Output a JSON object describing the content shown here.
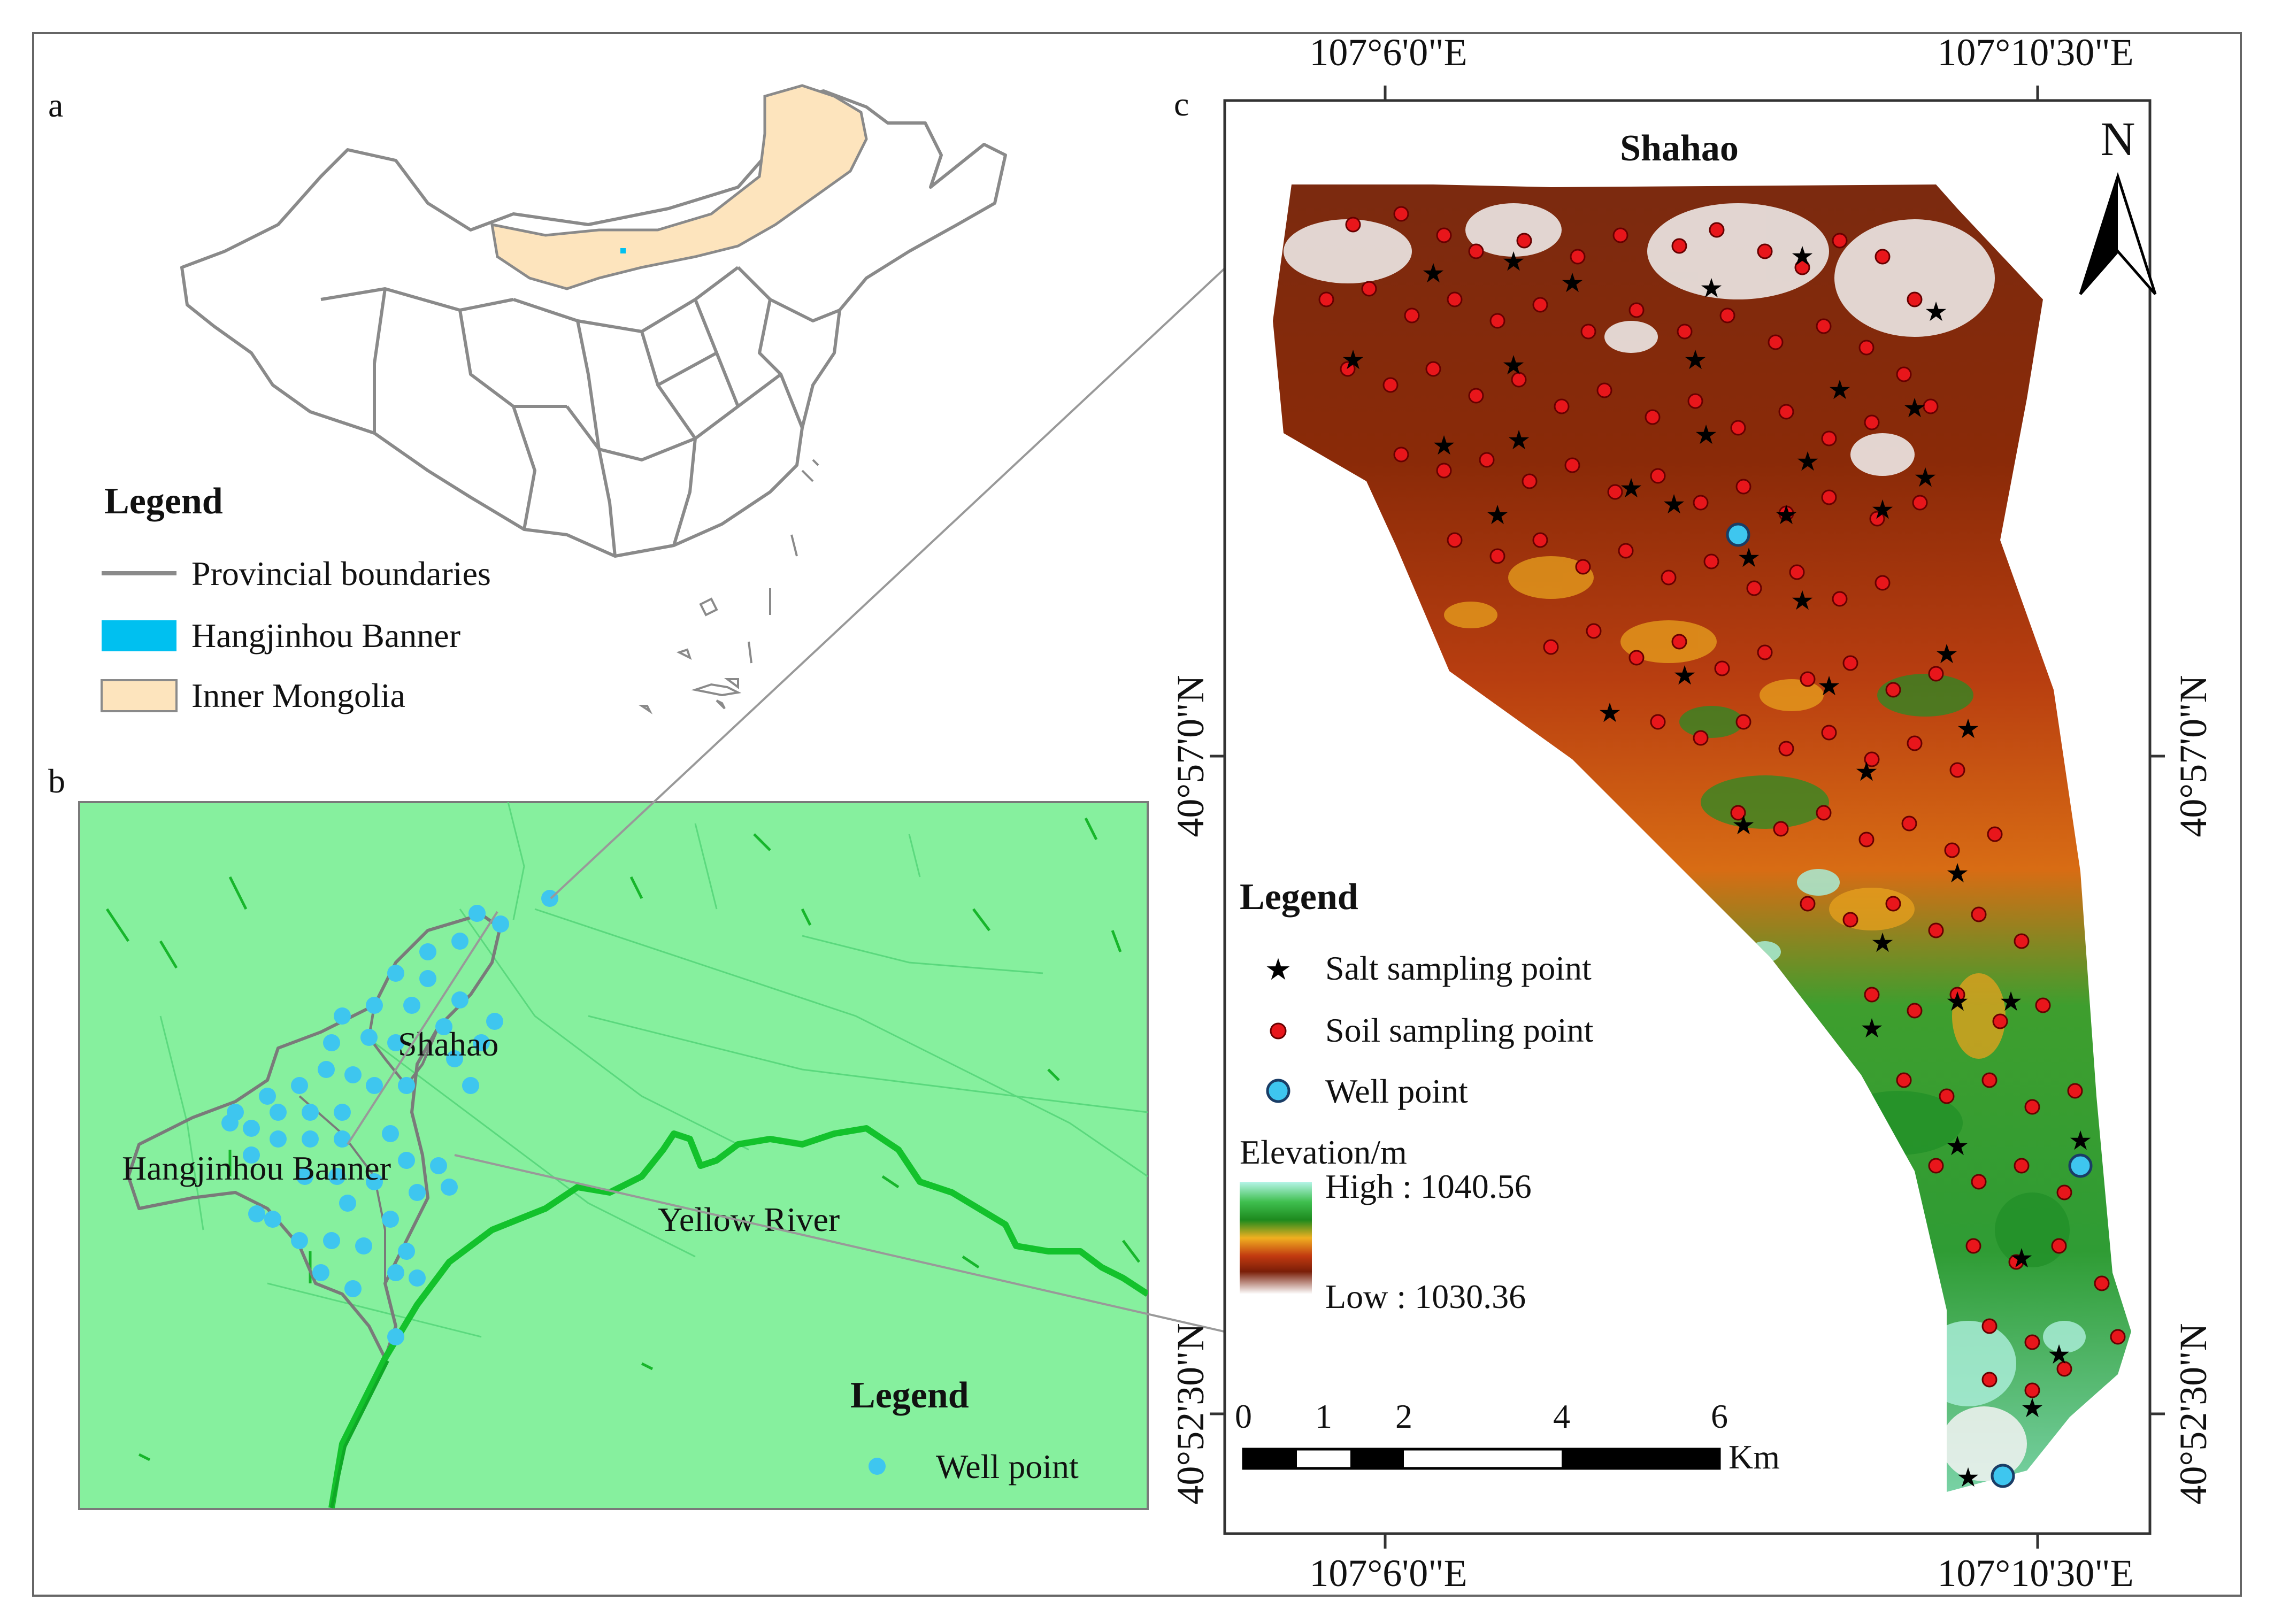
{
  "panels": {
    "a": {
      "label": "a",
      "legend": {
        "title": "Legend",
        "items": [
          {
            "label": "Provincial boundaries",
            "symbol": "line",
            "color": "#8a8a8a"
          },
          {
            "label": "Hangjinhou Banner",
            "symbol": "fill",
            "color": "#00c0f0"
          },
          {
            "label": "Inner Mongolia",
            "symbol": "fill",
            "color": "#fde4bd"
          }
        ]
      }
    },
    "b": {
      "label": "b",
      "place_labels": {
        "shahao": "Shahao",
        "banner": "Hangjinhou Banner",
        "river": "Yellow River"
      },
      "legend": {
        "title": "Legend",
        "items": [
          {
            "label": "Well point",
            "symbol": "dot",
            "color": "#3ec6ef"
          }
        ]
      },
      "background_color": "#86f09e",
      "river_color": "#13c22c"
    },
    "c": {
      "label": "c",
      "title": "Shahao",
      "north_label": "N",
      "coords": {
        "top_left": "107°6'0\"E",
        "top_right": "107°10'30\"E",
        "bottom_left": "107°6'0\"E",
        "bottom_right": "107°10'30\"E",
        "left_upper": "40°57'0\"N",
        "left_lower": "40°52'30\"N",
        "right_upper": "40°57'0\"N",
        "right_lower": "40°52'30\"N"
      },
      "legend": {
        "title": "Legend",
        "items": [
          {
            "label": "Salt sampling point",
            "symbol": "star",
            "color": "#000000"
          },
          {
            "label": "Soil sampling point",
            "symbol": "dot",
            "color": "#e8161b"
          },
          {
            "label": "Well point",
            "symbol": "circle",
            "color": "#3ec6ef"
          }
        ]
      },
      "elevation": {
        "title": "Elevation/m",
        "high_label": "High : 1040.56",
        "low_label": "Low : 1030.36",
        "high_value": 1040.56,
        "low_value": 1030.36,
        "ramp_colors": [
          "#b6f5e9",
          "#3fbf4f",
          "#1d8a1e",
          "#f0b020",
          "#c23a10",
          "#7a1e08",
          "#ffffff"
        ]
      },
      "scale_bar": {
        "ticks": [
          "0",
          "1",
          "2",
          "4",
          "6"
        ],
        "unit": "Km"
      }
    }
  }
}
